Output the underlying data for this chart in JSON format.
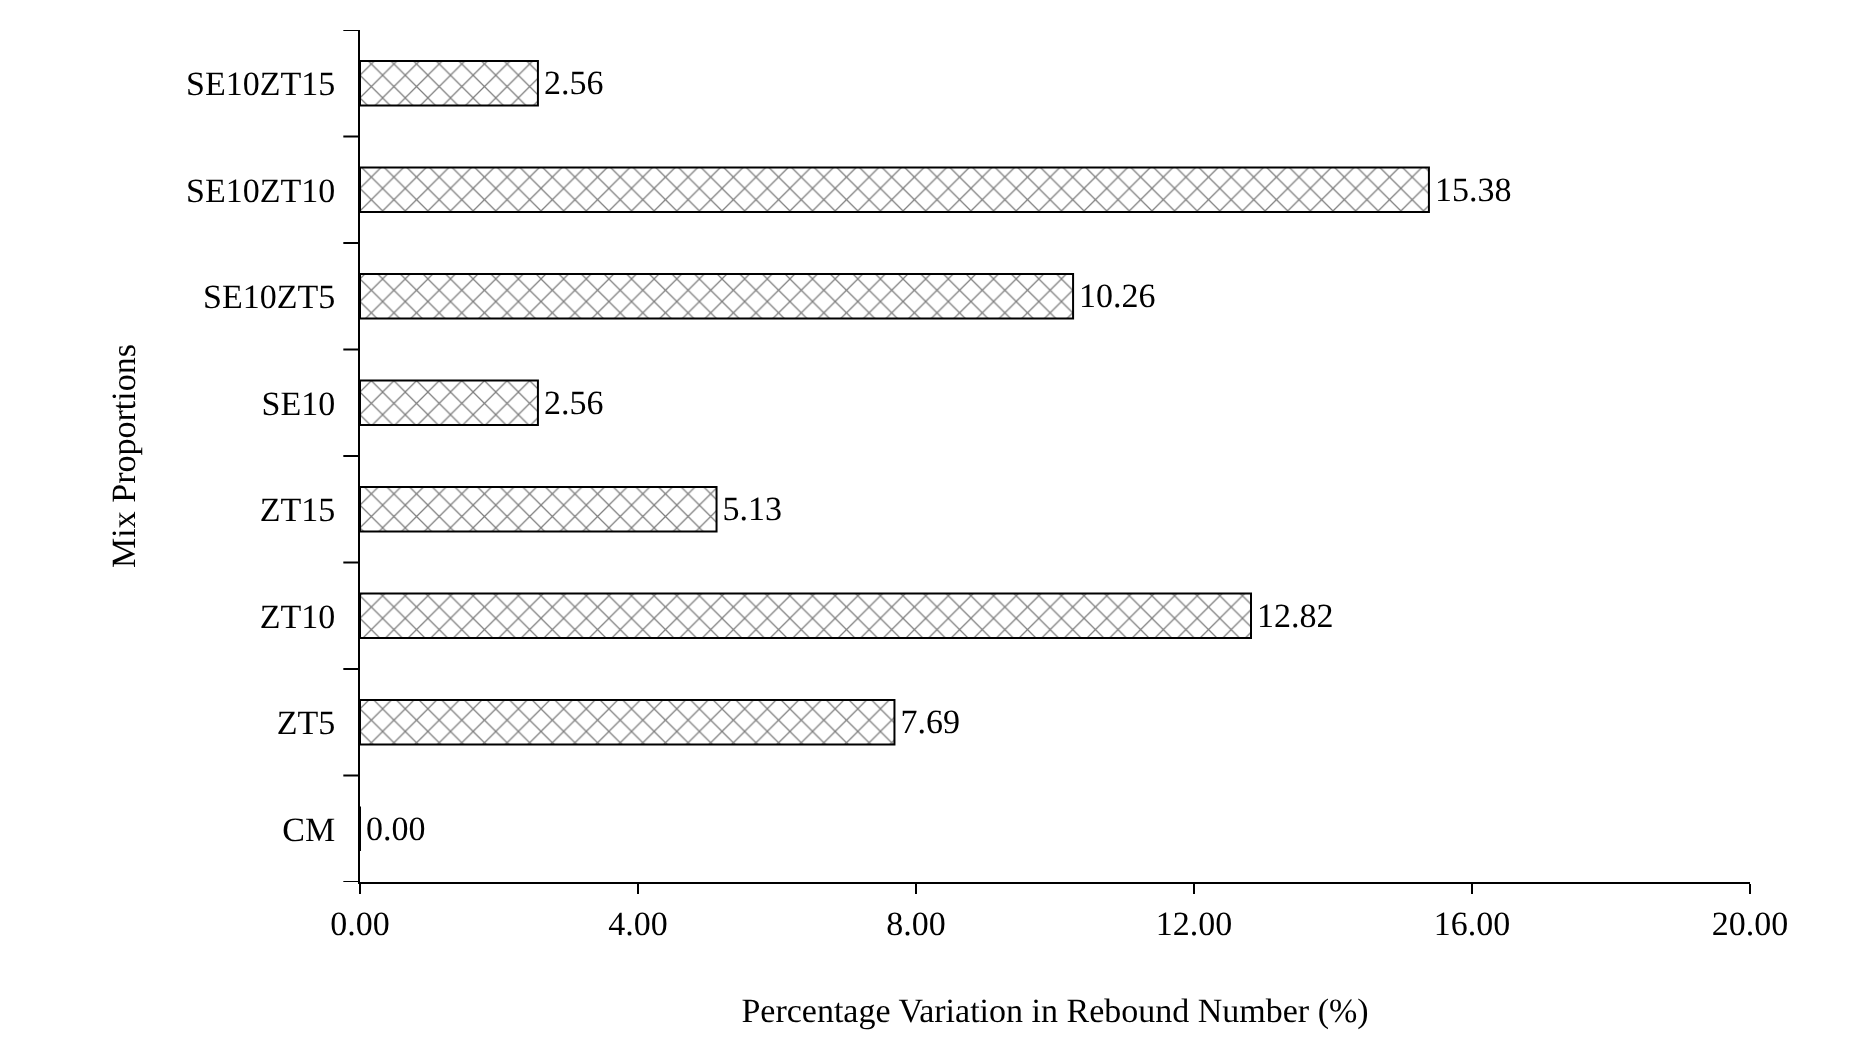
{
  "chart_data": {
    "type": "bar",
    "orientation": "horizontal",
    "xlabel": "Percentage Variation in Rebound Number (%)",
    "ylabel": "Mix Proportions",
    "categories": [
      "SE10ZT15",
      "SE10ZT10",
      "SE10ZT5",
      "SE10",
      "ZT15",
      "ZT10",
      "ZT5",
      "CM"
    ],
    "values": [
      2.56,
      15.38,
      10.26,
      2.56,
      5.13,
      12.82,
      7.69,
      0.0
    ],
    "value_labels": [
      "2.56",
      "15.38",
      "10.26",
      "2.56",
      "5.13",
      "12.82",
      "7.69",
      "0.00"
    ],
    "color": "#000000",
    "xlim": [
      0,
      20
    ],
    "xticks": [
      {
        "value": 0,
        "label": "0.00"
      },
      {
        "value": 4,
        "label": "4.00"
      },
      {
        "value": 8,
        "label": "8.00"
      },
      {
        "value": 12,
        "label": "12.00"
      },
      {
        "value": 16,
        "label": "16.00"
      },
      {
        "value": 20,
        "label": "20.00"
      }
    ],
    "legend": false
  }
}
